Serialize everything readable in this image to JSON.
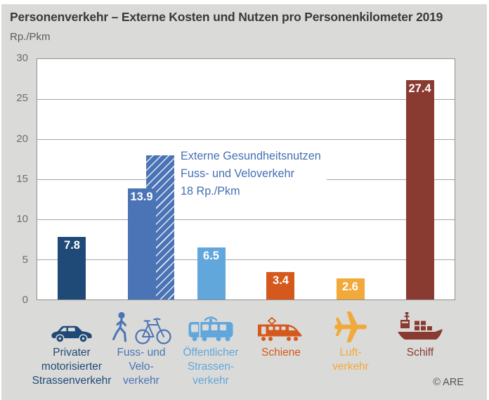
{
  "header": {
    "title": "Personenverkehr – Externe Kosten und Nutzen pro Personenkilometer 2019",
    "unit_label": "Rp./Pkm"
  },
  "chart_data": {
    "type": "bar",
    "title": "Personenverkehr – Externe Kosten und Nutzen pro Personenkilometer 2019",
    "ylabel": "Rp./Pkm",
    "ylim": [
      0,
      30
    ],
    "yticks": [
      30,
      25,
      20,
      15,
      10,
      5,
      0
    ],
    "grid": true,
    "legend_position": "none",
    "categories": [
      "Privater motorisierter Strassenverkehr",
      "Fuss- und Veloverkehr",
      "Öffentlicher Strassenverkehr",
      "Schiene",
      "Luftverkehr",
      "Schiff"
    ],
    "values": [
      7.8,
      13.9,
      6.5,
      3.4,
      2.6,
      27.4
    ],
    "bars": [
      {
        "value": 7.8,
        "color": "#1f4977",
        "icon": "car-icon",
        "label_lines": [
          "Privater",
          "motorisierter",
          "Strassenverkehr"
        ]
      },
      {
        "value": 13.9,
        "color": "#4b74b6",
        "icon": "pedestrian-bicycle-icon",
        "label_lines": [
          "Fuss- und",
          "Velo-",
          "verkehr"
        ],
        "hatched_benefit_value": 18
      },
      {
        "value": 6.5,
        "color": "#61a7dc",
        "icon": "tram-icon",
        "label_lines": [
          "Öffentlicher",
          "Strassen-",
          "verkehr"
        ]
      },
      {
        "value": 3.4,
        "color": "#d5581c",
        "icon": "train-icon",
        "label_lines": [
          "Schiene"
        ]
      },
      {
        "value": 2.6,
        "color": "#f2a93c",
        "icon": "airplane-icon",
        "label_lines": [
          "Luft-",
          "verkehr"
        ]
      },
      {
        "value": 27.4,
        "color": "#8a3b31",
        "icon": "ship-icon",
        "label_lines": [
          "Schiff"
        ]
      }
    ],
    "annotation": {
      "lines": [
        "Externe Gesundheitsnutzen",
        "Fuss- und Veloverkehr",
        "18 Rp./Pkm"
      ],
      "color": "#4470b4"
    }
  },
  "footer": {
    "copyright": "© ARE"
  }
}
